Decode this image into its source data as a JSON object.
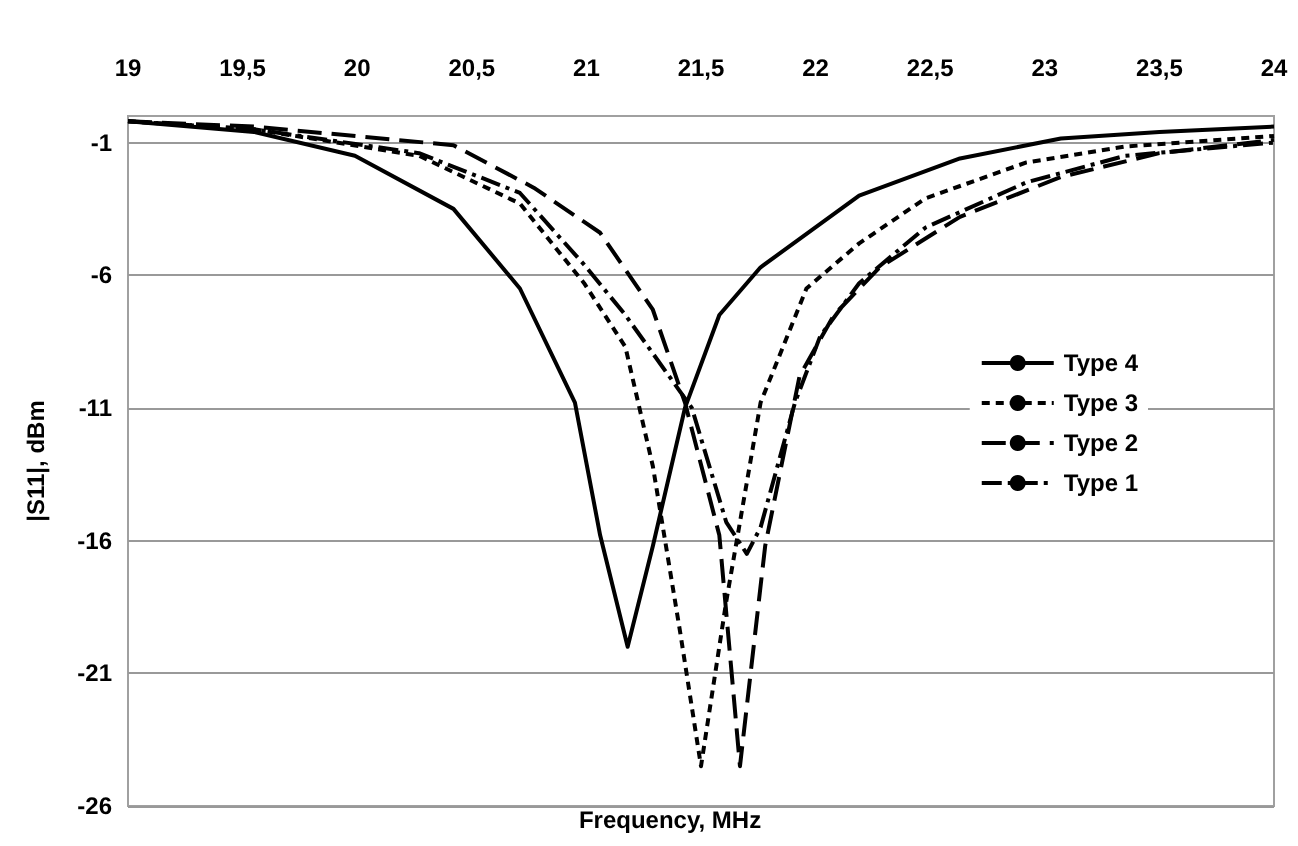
{
  "chart_data": {
    "type": "line",
    "xlabel": "Frequency, MHz",
    "ylabel": "|S11|, dBm",
    "xlim": [
      19,
      24
    ],
    "xticks": [
      19,
      {
        "value": 19.5,
        "label": "19,5"
      },
      20,
      {
        "value": 20.5,
        "label": "20,5"
      },
      21,
      {
        "value": 21.5,
        "label": "21,5"
      },
      22,
      {
        "value": 22.5,
        "label": "22,5"
      },
      23,
      {
        "value": 23.5,
        "label": "23,5"
      },
      24
    ],
    "ylim": [
      -26,
      0
    ],
    "yticks": [
      -26,
      -21,
      -16,
      -11,
      -6,
      -1
    ],
    "grid": "y",
    "legend": "right",
    "marker": "none",
    "series": [
      {
        "name": "Type 4",
        "color": "#000000",
        "line_style": "solid",
        "x": [
          19,
          19.55,
          19.99,
          20.42,
          20.71,
          20.95,
          21.06,
          21.18,
          21.29,
          21.43,
          21.58,
          21.76,
          22.19,
          22.63,
          23.07,
          23.5,
          24
        ],
        "values": [
          -0.2,
          -0.6,
          -1.5,
          -3.5,
          -6.5,
          -10.8,
          -15.8,
          -20,
          -16.2,
          -11,
          -7.5,
          -5.7,
          -3,
          -1.6,
          -0.85,
          -0.6,
          -0.4
        ]
      },
      {
        "name": "Type 3",
        "color": "#000000",
        "line_style": "dashed",
        "x": [
          19,
          19.55,
          20.27,
          20.71,
          20.99,
          21.17,
          21.29,
          21.41,
          21.5,
          21.61,
          21.76,
          21.96,
          22.19,
          22.48,
          22.92,
          23.35,
          24
        ],
        "values": [
          -0.2,
          -0.5,
          -1.5,
          -3.3,
          -6.3,
          -8.7,
          -13.2,
          -19.5,
          -24.5,
          -18.3,
          -10.8,
          -6.5,
          -4.8,
          -3.1,
          -1.75,
          -1.15,
          -0.75
        ]
      },
      {
        "name": "Type 2",
        "color": "#000000",
        "line_style": "longdash",
        "x": [
          19,
          19.55,
          20.42,
          20.77,
          21.06,
          21.29,
          21.43,
          21.58,
          21.67,
          21.78,
          21.93,
          22.08,
          22.28,
          22.63,
          23.07,
          23.5,
          24
        ],
        "values": [
          -0.2,
          -0.4,
          -1.1,
          -2.7,
          -4.4,
          -7.3,
          -10.8,
          -15.8,
          -24.5,
          -16.2,
          -9.8,
          -7.5,
          -5.7,
          -3.8,
          -2.3,
          -1.4,
          -0.9
        ]
      },
      {
        "name": "Type 1",
        "color": "#000000",
        "line_style": "dashdot",
        "x": [
          19,
          19.55,
          20.27,
          20.71,
          20.99,
          21.17,
          21.46,
          21.61,
          21.7,
          21.76,
          21.91,
          22.02,
          22.19,
          22.48,
          22.92,
          23.35,
          24
        ],
        "values": [
          -0.2,
          -0.5,
          -1.4,
          -2.9,
          -5.6,
          -7.5,
          -11,
          -15.3,
          -16.5,
          -15.5,
          -10.8,
          -8.3,
          -6.3,
          -4.2,
          -2.5,
          -1.5,
          -1
        ]
      }
    ]
  }
}
